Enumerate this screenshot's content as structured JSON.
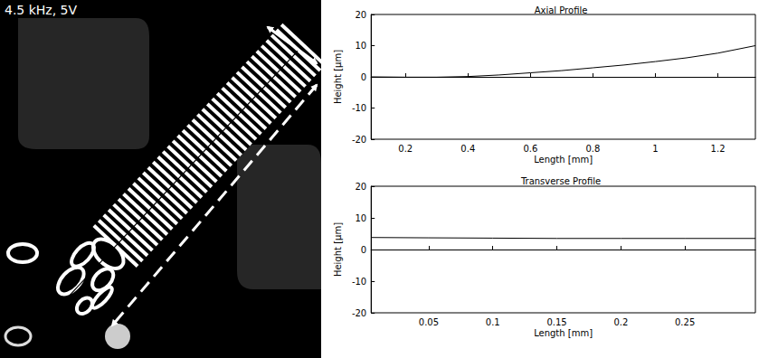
{
  "image": {
    "label": "4.5 kHz, 5V"
  },
  "chart_data": [
    {
      "type": "line",
      "title": "Axial Profile",
      "x_label": "Length [mm]",
      "y_label": "Height [µm]",
      "x": [
        0.09,
        0.2,
        0.3,
        0.4,
        0.5,
        0.6,
        0.7,
        0.8,
        0.9,
        1.0,
        1.1,
        1.2,
        1.32
      ],
      "values": [
        0,
        -0.1,
        -0.1,
        0.1,
        0.6,
        1.3,
        2.0,
        2.9,
        3.8,
        4.9,
        6.1,
        7.6,
        10
      ],
      "color": "#000000",
      "xlim": [
        0.09,
        1.32
      ],
      "ylim": [
        -20,
        20
      ],
      "xticks": [
        0.2,
        0.4,
        0.6,
        0.8,
        1,
        1.2
      ],
      "yticks": [
        -20,
        -10,
        0,
        10,
        20
      ],
      "grid": false
    },
    {
      "type": "line",
      "title": "Transverse Profile",
      "x_label": "Length [mm]",
      "y_label": "Height [µm]",
      "x": [
        0.005,
        0.05,
        0.1,
        0.15,
        0.2,
        0.25,
        0.305
      ],
      "values": [
        3.8,
        3.7,
        3.6,
        3.5,
        3.5,
        3.5,
        3.5
      ],
      "color": "#000000",
      "xlim": [
        0.005,
        0.305
      ],
      "ylim": [
        -20,
        20
      ],
      "xticks": [
        0.05,
        0.1,
        0.15,
        0.2,
        0.25
      ],
      "yticks": [
        -20,
        -10,
        0,
        10,
        20
      ],
      "grid": false
    }
  ]
}
